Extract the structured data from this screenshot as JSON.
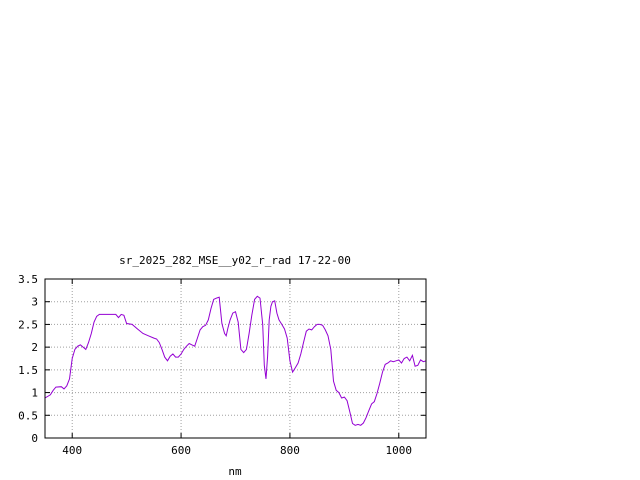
{
  "chart_data": {
    "type": "line",
    "title": "sr_2025_282_MSE__y02_r_rad 17-22-00",
    "xlabel": "nm",
    "ylabel": "",
    "xlim": [
      350,
      1050
    ],
    "ylim": [
      0,
      3.5
    ],
    "grid": true,
    "x_ticks": [
      400,
      600,
      800,
      1000
    ],
    "x_tick_labels": [
      "400",
      "600",
      "800",
      "1000"
    ],
    "y_ticks": [
      0,
      0.5,
      1,
      1.5,
      2,
      2.5,
      3,
      3.5
    ],
    "y_tick_labels": [
      "0",
      "0.5",
      "1",
      "1.5",
      "2",
      "2.5",
      "3",
      "3.5"
    ],
    "series": [
      {
        "color": "#9400d3",
        "x": [
          350,
          360,
          365,
          370,
          380,
          385,
          390,
          395,
          400,
          405,
          410,
          415,
          420,
          425,
          430,
          435,
          440,
          445,
          450,
          455,
          460,
          470,
          480,
          485,
          490,
          495,
          500,
          510,
          520,
          530,
          540,
          550,
          555,
          560,
          565,
          570,
          575,
          580,
          585,
          590,
          595,
          600,
          605,
          610,
          615,
          620,
          625,
          630,
          635,
          640,
          645,
          650,
          655,
          660,
          665,
          670,
          675,
          680,
          683,
          686,
          690,
          695,
          700,
          705,
          710,
          715,
          720,
          725,
          730,
          735,
          740,
          745,
          750,
          753,
          756,
          759,
          762,
          765,
          768,
          772,
          776,
          780,
          785,
          790,
          795,
          800,
          805,
          810,
          815,
          820,
          825,
          830,
          835,
          840,
          845,
          850,
          855,
          860,
          865,
          870,
          875,
          880,
          885,
          890,
          895,
          900,
          905,
          910,
          915,
          920,
          925,
          930,
          935,
          940,
          945,
          950,
          955,
          960,
          965,
          970,
          975,
          980,
          985,
          990,
          995,
          1000,
          1005,
          1010,
          1015,
          1020,
          1025,
          1030,
          1035,
          1040,
          1045,
          1050
        ],
        "y": [
          0.88,
          0.95,
          1.05,
          1.12,
          1.13,
          1.08,
          1.15,
          1.3,
          1.75,
          1.95,
          2.02,
          2.05,
          2.0,
          1.95,
          2.1,
          2.3,
          2.55,
          2.68,
          2.72,
          2.72,
          2.72,
          2.72,
          2.72,
          2.65,
          2.72,
          2.7,
          2.52,
          2.5,
          2.4,
          2.3,
          2.25,
          2.2,
          2.18,
          2.1,
          1.95,
          1.78,
          1.7,
          1.8,
          1.85,
          1.78,
          1.78,
          1.85,
          1.95,
          2.02,
          2.08,
          2.05,
          2.02,
          2.2,
          2.38,
          2.45,
          2.48,
          2.6,
          2.85,
          3.05,
          3.08,
          3.1,
          2.52,
          2.3,
          2.25,
          2.42,
          2.6,
          2.75,
          2.78,
          2.55,
          1.95,
          1.88,
          1.95,
          2.3,
          2.7,
          3.05,
          3.12,
          3.08,
          2.5,
          1.6,
          1.3,
          1.8,
          2.6,
          2.9,
          3.0,
          3.02,
          2.75,
          2.6,
          2.5,
          2.4,
          2.2,
          1.7,
          1.45,
          1.55,
          1.65,
          1.85,
          2.1,
          2.35,
          2.4,
          2.38,
          2.45,
          2.5,
          2.5,
          2.48,
          2.38,
          2.25,
          1.95,
          1.25,
          1.05,
          1.0,
          0.88,
          0.9,
          0.82,
          0.58,
          0.32,
          0.28,
          0.3,
          0.28,
          0.33,
          0.45,
          0.6,
          0.75,
          0.8,
          0.98,
          1.2,
          1.45,
          1.62,
          1.65,
          1.7,
          1.68,
          1.7,
          1.72,
          1.65,
          1.75,
          1.78,
          1.7,
          1.82,
          1.58,
          1.6,
          1.72,
          1.68,
          1.7
        ]
      }
    ]
  }
}
